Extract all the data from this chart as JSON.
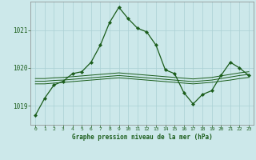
{
  "title": "Graphe pression niveau de la mer (hPa)",
  "background_color": "#cce8ea",
  "grid_color": "#aad0d4",
  "line_color": "#1a5c1a",
  "xlim": [
    -0.5,
    23.5
  ],
  "ylim": [
    1018.5,
    1021.75
  ],
  "yticks": [
    1019,
    1020,
    1021
  ],
  "xticks": [
    0,
    1,
    2,
    3,
    4,
    5,
    6,
    7,
    8,
    9,
    10,
    11,
    12,
    13,
    14,
    15,
    16,
    17,
    18,
    19,
    20,
    21,
    22,
    23
  ],
  "hours": [
    0,
    1,
    2,
    3,
    4,
    5,
    6,
    7,
    8,
    9,
    10,
    11,
    12,
    13,
    14,
    15,
    16,
    17,
    18,
    19,
    20,
    21,
    22,
    23
  ],
  "pressure_main": [
    1018.75,
    1019.2,
    1019.55,
    1019.65,
    1019.85,
    1019.9,
    1020.15,
    1020.6,
    1021.2,
    1021.6,
    1021.3,
    1021.05,
    1020.95,
    1020.6,
    1019.95,
    1019.85,
    1019.35,
    1019.05,
    1019.3,
    1019.4,
    1019.8,
    1020.15,
    1020.0,
    1019.8
  ],
  "pressure_avg1": [
    1019.58,
    1019.58,
    1019.6,
    1019.62,
    1019.64,
    1019.66,
    1019.68,
    1019.7,
    1019.72,
    1019.74,
    1019.72,
    1019.7,
    1019.68,
    1019.66,
    1019.64,
    1019.62,
    1019.6,
    1019.58,
    1019.6,
    1019.62,
    1019.65,
    1019.68,
    1019.72,
    1019.75
  ],
  "pressure_avg2": [
    1019.65,
    1019.65,
    1019.67,
    1019.68,
    1019.7,
    1019.72,
    1019.74,
    1019.76,
    1019.78,
    1019.8,
    1019.78,
    1019.76,
    1019.74,
    1019.72,
    1019.7,
    1019.68,
    1019.66,
    1019.64,
    1019.66,
    1019.68,
    1019.72,
    1019.76,
    1019.8,
    1019.83
  ],
  "pressure_avg3": [
    1019.72,
    1019.72,
    1019.74,
    1019.75,
    1019.77,
    1019.79,
    1019.81,
    1019.83,
    1019.85,
    1019.87,
    1019.85,
    1019.83,
    1019.81,
    1019.79,
    1019.77,
    1019.75,
    1019.73,
    1019.71,
    1019.73,
    1019.75,
    1019.79,
    1019.83,
    1019.87,
    1019.9
  ]
}
